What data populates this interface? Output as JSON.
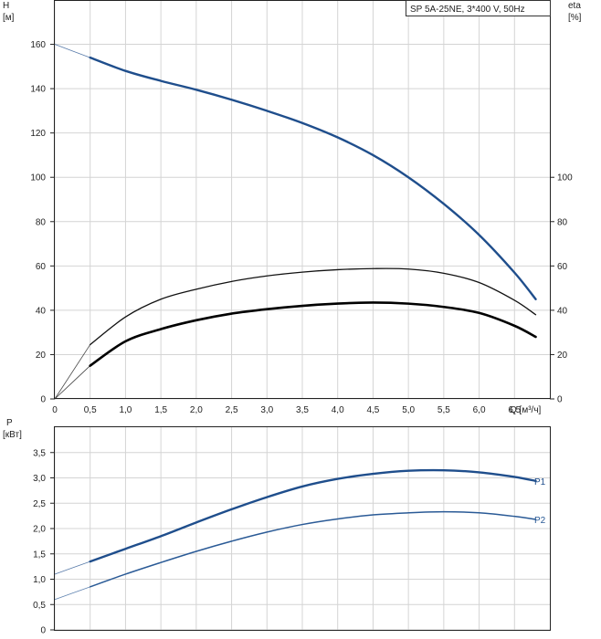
{
  "title_box": "SP 5A-25NE, 3*400 V, 50Hz",
  "chart_data": [
    {
      "type": "line",
      "name": "head-efficiency",
      "ylabel_left": "H",
      "ylabel_left_unit": "[м]",
      "ylabel_right": "eta",
      "ylabel_right_unit": "[%]",
      "xlabel": "Q [м³/ч]",
      "xlim": [
        0,
        7.0
      ],
      "ylim_left": [
        0,
        180
      ],
      "ylim_right": [
        0,
        180
      ],
      "x_ticks": [
        "0",
        "0,5",
        "1,0",
        "1,5",
        "2,0",
        "2,5",
        "3,0",
        "3,5",
        "4,0",
        "4,5",
        "5,0",
        "5,5",
        "6,0",
        "6,5"
      ],
      "y_left_ticks": [
        "0",
        "20",
        "40",
        "60",
        "80",
        "100",
        "120",
        "140",
        "160"
      ],
      "y_right_ticks": [
        "0",
        "20",
        "40",
        "60",
        "80",
        "100"
      ],
      "grid": true,
      "series": [
        {
          "key": "H",
          "color": "#1f4e8c",
          "x": [
            0.0,
            0.5,
            1.0,
            1.5,
            2.0,
            2.5,
            3.0,
            3.5,
            4.0,
            4.5,
            5.0,
            5.5,
            6.0,
            6.5,
            6.8
          ],
          "y": [
            160,
            154,
            148,
            143.5,
            139.5,
            135,
            130,
            124.5,
            118,
            110,
            100,
            88,
            74,
            57,
            45
          ]
        },
        {
          "key": "eta-complete",
          "color": "#111111",
          "x": [
            0.0,
            0.5,
            1.0,
            1.5,
            2.0,
            2.5,
            3.0,
            3.5,
            4.0,
            4.5,
            5.0,
            5.5,
            6.0,
            6.5,
            6.8
          ],
          "y": [
            0,
            24.5,
            37,
            45,
            49.5,
            53,
            55.5,
            57.2,
            58.3,
            58.8,
            58.6,
            56.7,
            52.5,
            44.5,
            38
          ]
        },
        {
          "key": "eta-hydraulic",
          "color": "#000000",
          "x": [
            0.0,
            0.5,
            1.0,
            1.5,
            2.0,
            2.5,
            3.0,
            3.5,
            4.0,
            4.5,
            5.0,
            5.5,
            6.0,
            6.5,
            6.8
          ],
          "y": [
            0,
            15,
            26,
            31.5,
            35.5,
            38.5,
            40.5,
            42,
            43,
            43.5,
            43,
            41.5,
            38.8,
            33,
            28
          ]
        }
      ]
    },
    {
      "type": "line",
      "name": "power",
      "ylabel": "P",
      "ylabel_unit": "[кВт]",
      "xlim": [
        0,
        7.0
      ],
      "ylim": [
        0,
        4.0
      ],
      "y_ticks": [
        "0",
        "0,5",
        "1,0",
        "1,5",
        "2,0",
        "2,5",
        "3,0",
        "3,5"
      ],
      "grid": true,
      "series": [
        {
          "name": "P1",
          "color": "#1f4e8c",
          "x": [
            0.0,
            0.5,
            1.0,
            1.5,
            2.0,
            2.5,
            3.0,
            3.5,
            4.0,
            4.5,
            5.0,
            5.5,
            6.0,
            6.5,
            6.8
          ],
          "y": [
            1.1,
            1.35,
            1.6,
            1.85,
            2.12,
            2.38,
            2.62,
            2.83,
            2.98,
            3.08,
            3.14,
            3.15,
            3.11,
            3.02,
            2.94
          ]
        },
        {
          "name": "P2",
          "color": "#2a5a96",
          "x": [
            0.0,
            0.5,
            1.0,
            1.5,
            2.0,
            2.5,
            3.0,
            3.5,
            4.0,
            4.5,
            5.0,
            5.5,
            6.0,
            6.5,
            6.8
          ],
          "y": [
            0.6,
            0.85,
            1.1,
            1.33,
            1.55,
            1.75,
            1.93,
            2.08,
            2.19,
            2.27,
            2.31,
            2.33,
            2.31,
            2.24,
            2.18
          ]
        }
      ]
    }
  ]
}
